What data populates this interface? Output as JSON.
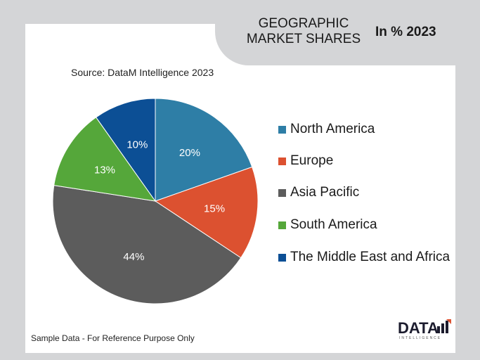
{
  "header": {
    "title": "GEOGRAPHIC\nMARKET SHARES",
    "year_label": "In % 2023"
  },
  "source": "Source: DataM Intelligence  2023",
  "footer": {
    "note": "Sample Data - For Reference Purpose Only",
    "logo_text": "DATA",
    "logo_sub": "INTELLIGENCE"
  },
  "chart_data": {
    "type": "pie",
    "title": "GEOGRAPHIC MARKET SHARES",
    "categories": [
      "North America",
      "Europe",
      "Asia Pacific",
      "South America",
      "The Middle East and Africa"
    ],
    "values": [
      20,
      15,
      44,
      13,
      10
    ],
    "value_labels": [
      "20%",
      "15%",
      "44%",
      "13%",
      "10%"
    ],
    "colors": [
      "#2e7ea6",
      "#dc5130",
      "#5c5c5c",
      "#55a73a",
      "#0c4f95"
    ],
    "legend_position": "right",
    "start": "top",
    "direction": "clockwise"
  }
}
